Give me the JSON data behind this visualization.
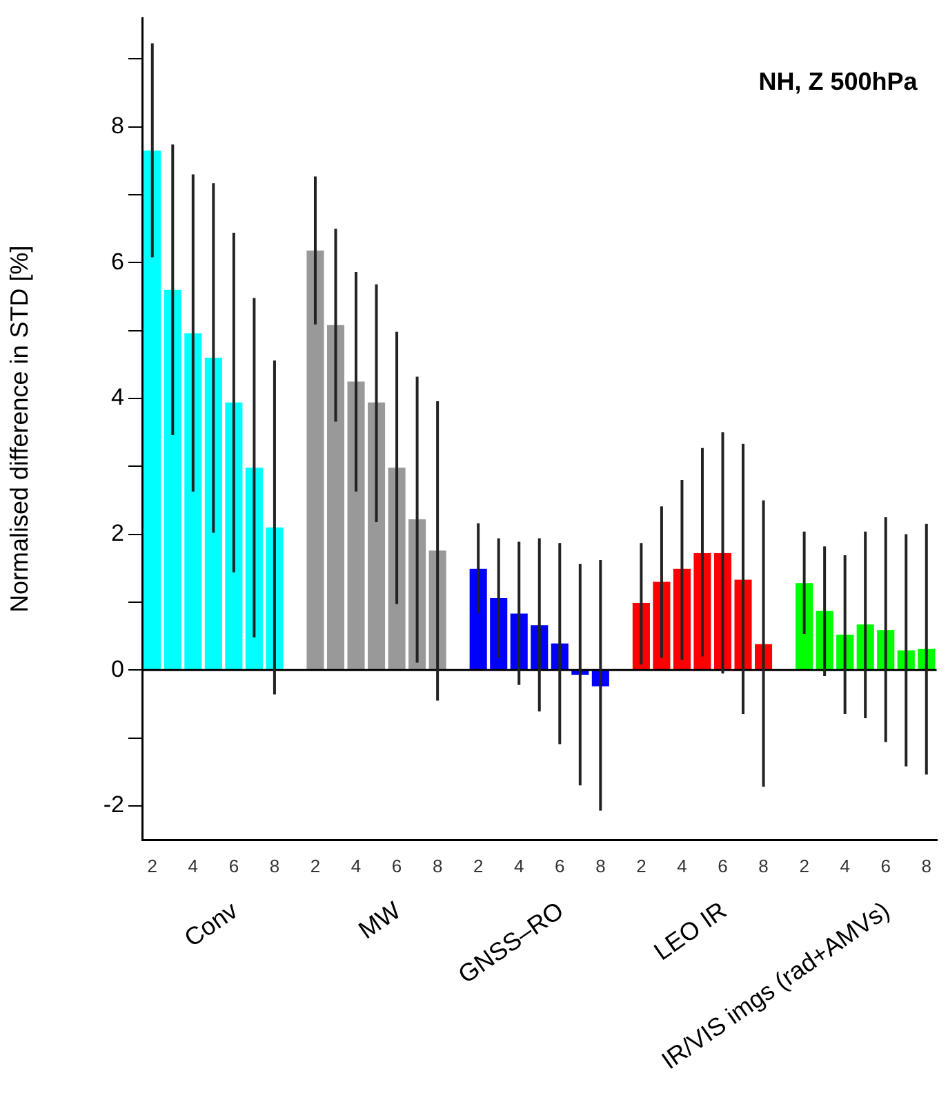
{
  "chart_data": {
    "type": "bar",
    "title": "NH, Z 500hPa",
    "ylabel": "Normalised difference in STD [%]",
    "categories": [
      "2",
      null,
      "4",
      null,
      "6",
      null,
      "8",
      null,
      "2",
      null,
      "4",
      null,
      "6",
      null,
      "8",
      null,
      "2",
      null,
      "4",
      null,
      "6",
      null,
      "8",
      null,
      "2",
      null,
      "4",
      null,
      "6",
      null,
      "8",
      null,
      "2",
      null,
      "4",
      null,
      "6",
      null,
      "8"
    ],
    "values": [
      7.65,
      5.6,
      4.96,
      4.6,
      3.94,
      2.98,
      2.1,
      null,
      6.18,
      5.08,
      4.25,
      3.94,
      2.98,
      2.22,
      1.76,
      null,
      1.49,
      1.06,
      0.83,
      0.66,
      0.39,
      -0.07,
      -0.24,
      null,
      0.99,
      1.3,
      1.49,
      1.72,
      1.72,
      1.33,
      0.38,
      null,
      1.28,
      0.87,
      0.52,
      0.67,
      0.59,
      0.29,
      0.31
    ],
    "colors": [
      "#00ffff",
      "#00ffff",
      "#00ffff",
      "#00ffff",
      "#00ffff",
      "#00ffff",
      "#00ffff",
      null,
      "#999999",
      "#999999",
      "#999999",
      "#999999",
      "#999999",
      "#999999",
      "#999999",
      null,
      "#0000ff",
      "#0000ff",
      "#0000ff",
      "#0000ff",
      "#0000ff",
      "#0000ff",
      "#0000ff",
      null,
      "#ff0000",
      "#ff0000",
      "#ff0000",
      "#ff0000",
      "#ff0000",
      "#ff0000",
      "#ff0000",
      null,
      "#00ff00",
      "#00ff00",
      "#00ff00",
      "#00ff00",
      "#00ff00",
      "#00ff00",
      "#00ff00"
    ],
    "errors": [
      [
        6.08,
        9.23
      ],
      [
        3.46,
        7.74
      ],
      [
        2.63,
        7.3
      ],
      [
        2.02,
        7.17
      ],
      [
        1.44,
        6.44
      ],
      [
        0.48,
        5.48
      ],
      [
        -0.36,
        4.56
      ],
      null,
      [
        5.09,
        7.27
      ],
      [
        3.66,
        6.5
      ],
      [
        2.63,
        5.86
      ],
      [
        2.18,
        5.68
      ],
      [
        0.97,
        4.98
      ],
      [
        0.11,
        4.32
      ],
      [
        -0.45,
        3.96
      ],
      null,
      [
        0.84,
        2.16
      ],
      [
        0.18,
        1.94
      ],
      [
        -0.22,
        1.89
      ],
      [
        -0.61,
        1.94
      ],
      [
        -1.09,
        1.87
      ],
      [
        -1.7,
        1.56
      ],
      [
        -2.07,
        1.62
      ],
      null,
      [
        0.08,
        1.87
      ],
      [
        0.18,
        2.41
      ],
      [
        0.15,
        2.8
      ],
      [
        0.2,
        3.27
      ],
      [
        -0.05,
        3.5
      ],
      [
        -0.65,
        3.33
      ],
      [
        -1.72,
        2.5
      ],
      null,
      [
        0.53,
        2.04
      ],
      [
        -0.09,
        1.82
      ],
      [
        -0.65,
        1.69
      ],
      [
        -0.71,
        2.04
      ],
      [
        -1.06,
        2.25
      ],
      [
        -1.42,
        2.0
      ],
      [
        -1.54,
        2.15
      ]
    ],
    "ylim": [
      -2.5,
      9.6
    ],
    "yticks": [
      -2,
      {
        "value": -1,
        "label": null
      },
      0,
      {
        "value": 1,
        "label": null
      },
      2,
      {
        "value": 3,
        "label": null
      },
      4,
      {
        "value": 5,
        "label": null
      },
      6,
      {
        "value": 7,
        "label": null
      },
      8,
      {
        "value": 9,
        "label": null
      }
    ],
    "ref_lines": [
      {
        "axis": "y",
        "value": 0,
        "color": "#000000"
      }
    ],
    "annotations": [
      "Conv",
      "MW",
      "GNSS–RO",
      "LEO IR",
      "IR/VIS imgs (rad+AMVs)"
    ],
    "grid": false,
    "legend": false
  }
}
